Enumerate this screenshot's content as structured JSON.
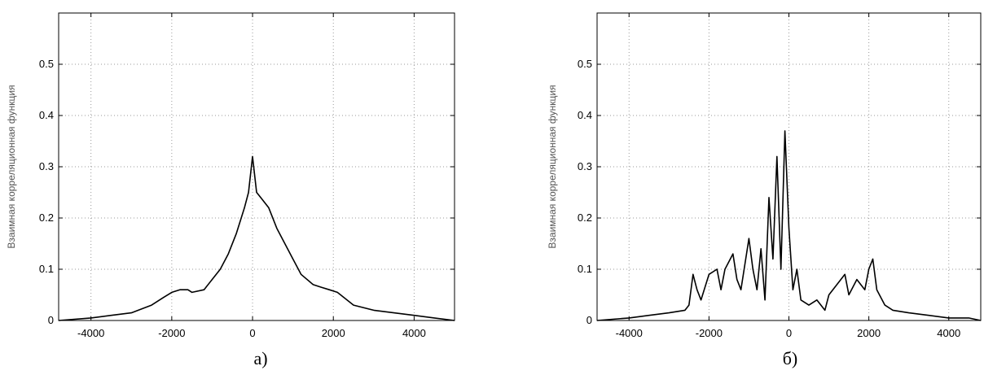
{
  "chart_data": [
    {
      "type": "line",
      "panel_label": "а)",
      "ylabel": "Взаимная корреляционная функция",
      "xlim": [
        -4800,
        5000
      ],
      "ylim": [
        0,
        0.6
      ],
      "x_ticks": [
        -4000,
        -2000,
        0,
        2000,
        4000
      ],
      "x_tick_labels": [
        "-4000",
        "-2000",
        "0",
        "2000",
        "4000"
      ],
      "y_ticks": [
        0,
        0.1,
        0.2,
        0.3,
        0.4,
        0.5
      ],
      "y_tick_labels": [
        "0",
        "0.1",
        "0.2",
        "0.3",
        "0.4",
        "0.5"
      ],
      "grid": true,
      "series": [
        {
          "color": "#000000",
          "x": [
            -4800,
            -4000,
            -3500,
            -3000,
            -2500,
            -2200,
            -2000,
            -1800,
            -1600,
            -1500,
            -1200,
            -1000,
            -800,
            -600,
            -400,
            -200,
            -100,
            0,
            100,
            200,
            400,
            600,
            800,
            1000,
            1200,
            1500,
            1700,
            1900,
            2100,
            2500,
            3000,
            3500,
            4000,
            4500,
            5000
          ],
          "y": [
            0.0,
            0.005,
            0.01,
            0.015,
            0.03,
            0.045,
            0.055,
            0.06,
            0.06,
            0.055,
            0.06,
            0.08,
            0.1,
            0.13,
            0.17,
            0.22,
            0.25,
            0.32,
            0.25,
            0.24,
            0.22,
            0.18,
            0.15,
            0.12,
            0.09,
            0.07,
            0.065,
            0.06,
            0.055,
            0.03,
            0.02,
            0.015,
            0.01,
            0.005,
            0.0
          ]
        }
      ]
    },
    {
      "type": "line",
      "panel_label": "б)",
      "ylabel": "Взаимная корреляционная функция",
      "xlim": [
        -4800,
        4800
      ],
      "ylim": [
        0,
        0.6
      ],
      "x_ticks": [
        -4000,
        -2000,
        0,
        2000,
        4000
      ],
      "x_tick_labels": [
        "-4000",
        "-2000",
        "0",
        "2000",
        "4000"
      ],
      "y_ticks": [
        0,
        0.1,
        0.2,
        0.3,
        0.4,
        0.5
      ],
      "y_tick_labels": [
        "0",
        "0.1",
        "0.2",
        "0.3",
        "0.4",
        "0.5"
      ],
      "grid": true,
      "series": [
        {
          "color": "#000000",
          "x": [
            -4800,
            -4000,
            -3500,
            -3000,
            -2600,
            -2500,
            -2400,
            -2300,
            -2200,
            -2000,
            -1800,
            -1700,
            -1600,
            -1400,
            -1300,
            -1200,
            -1000,
            -900,
            -800,
            -700,
            -600,
            -500,
            -400,
            -300,
            -200,
            -100,
            0,
            100,
            200,
            300,
            500,
            700,
            900,
            1000,
            1200,
            1400,
            1500,
            1700,
            1900,
            2000,
            2100,
            2200,
            2400,
            2600,
            3000,
            3500,
            4000,
            4500,
            4800
          ],
          "y": [
            0.0,
            0.005,
            0.01,
            0.015,
            0.02,
            0.03,
            0.09,
            0.06,
            0.04,
            0.09,
            0.1,
            0.06,
            0.1,
            0.13,
            0.08,
            0.06,
            0.16,
            0.1,
            0.06,
            0.14,
            0.04,
            0.24,
            0.12,
            0.32,
            0.1,
            0.37,
            0.18,
            0.06,
            0.1,
            0.04,
            0.03,
            0.04,
            0.02,
            0.05,
            0.07,
            0.09,
            0.05,
            0.08,
            0.06,
            0.1,
            0.12,
            0.06,
            0.03,
            0.02,
            0.015,
            0.01,
            0.005,
            0.005,
            0.0
          ]
        }
      ]
    }
  ]
}
